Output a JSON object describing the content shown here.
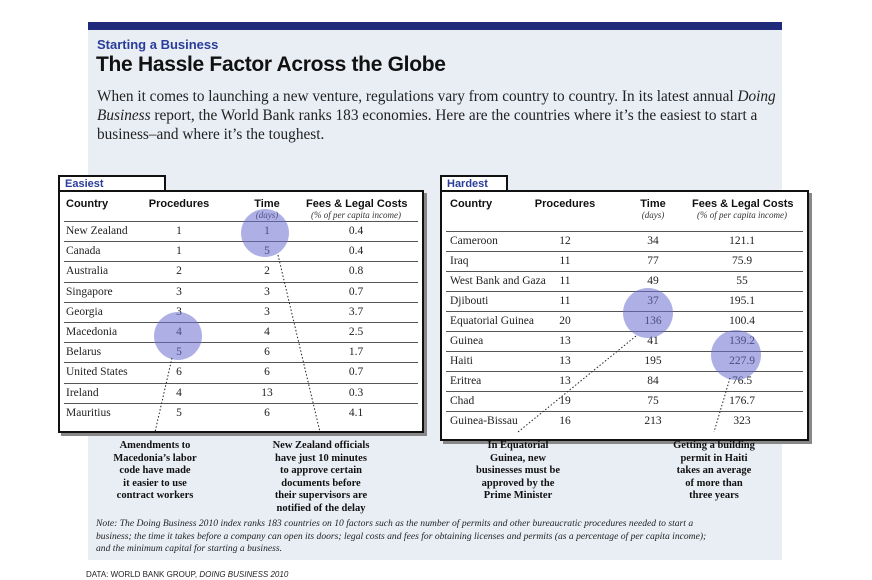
{
  "header": {
    "kicker": "Starting a Business",
    "title": "The Hassle Factor Across the Globe",
    "intro_before": "When it comes to launching a new venture, regulations vary from country to country. In its latest annual ",
    "intro_italic": "Doing Business",
    "intro_after": " report, the World Bank ranks 183 economies. Here are the countries where it’s the easiest to start a business–and where it’s the toughest."
  },
  "tables": [
    {
      "label": "Easiest",
      "columns": [
        {
          "label": "Country"
        },
        {
          "label": "Procedures"
        },
        {
          "label": "Time",
          "sub": "(days)"
        },
        {
          "label": "Fees & Legal Costs",
          "sub": "(% of per capita income)"
        }
      ],
      "rows": [
        [
          "New Zealand",
          "1",
          "1",
          "0.4"
        ],
        [
          "Canada",
          "1",
          "5",
          "0.4"
        ],
        [
          "Australia",
          "2",
          "2",
          "0.8"
        ],
        [
          "Singapore",
          "3",
          "3",
          "0.7"
        ],
        [
          "Georgia",
          "3",
          "3",
          "3.7"
        ],
        [
          "Macedonia",
          "4",
          "4",
          "2.5"
        ],
        [
          "Belarus",
          "5",
          "6",
          "1.7"
        ],
        [
          "United States",
          "6",
          "6",
          "0.7"
        ],
        [
          "Ireland",
          "4",
          "13",
          "0.3"
        ],
        [
          "Mauritius",
          "5",
          "6",
          "4.1"
        ]
      ]
    },
    {
      "label": "Hardest",
      "columns": [
        {
          "label": "Country"
        },
        {
          "label": "Procedures"
        },
        {
          "label": "Time",
          "sub": "(days)"
        },
        {
          "label": "Fees & Legal Costs",
          "sub": "(% of per capita income)"
        }
      ],
      "rows": [
        [
          "Cameroon",
          "12",
          "34",
          "121.1"
        ],
        [
          "Iraq",
          "11",
          "77",
          "75.9"
        ],
        [
          "West Bank and Gaza",
          "11",
          "49",
          "55"
        ],
        [
          "Djibouti",
          "11",
          "37",
          "195.1"
        ],
        [
          "Equatorial Guinea",
          "20",
          "136",
          "100.4"
        ],
        [
          "Guinea",
          "13",
          "41",
          "139.2"
        ],
        [
          "Haiti",
          "13",
          "195",
          "227.9"
        ],
        [
          "Eritrea",
          "13",
          "84",
          "76.5"
        ],
        [
          "Chad",
          "19",
          "75",
          "176.7"
        ],
        [
          "Guinea-Bissau",
          "16",
          "213",
          "323"
        ]
      ]
    }
  ],
  "annotations": [
    {
      "lines": [
        "Amendments to",
        "Macedonia’s labor",
        "code have made",
        "it easier to use",
        "contract workers"
      ]
    },
    {
      "lines": [
        "New Zealand officials",
        "have just 10 minutes",
        "to approve certain",
        "documents before",
        "their supervisors are",
        "notified of the delay"
      ]
    },
    {
      "lines": [
        "In Equatorial",
        "Guinea, new",
        "businesses must be",
        "approved by the",
        "Prime Minister"
      ]
    },
    {
      "lines": [
        "Getting a building",
        "permit in Haiti",
        "takes an average",
        "of more than",
        "three years"
      ]
    }
  ],
  "note": {
    "lines": [
      "Note: The Doing Business 2010 index ranks 183 countries on 10 factors such as the number of permits and other bureaucratic procedures needed to start a",
      "business; the time it takes before a company can open its doors; legal costs and fees for obtaining licenses and permits (as a percentage of per capita income);",
      "and the minimum capital for starting a business."
    ]
  },
  "source": {
    "prefix": "DATA: WORLD BANK GROUP, ",
    "italic": "DOING BUSINESS 2010"
  }
}
